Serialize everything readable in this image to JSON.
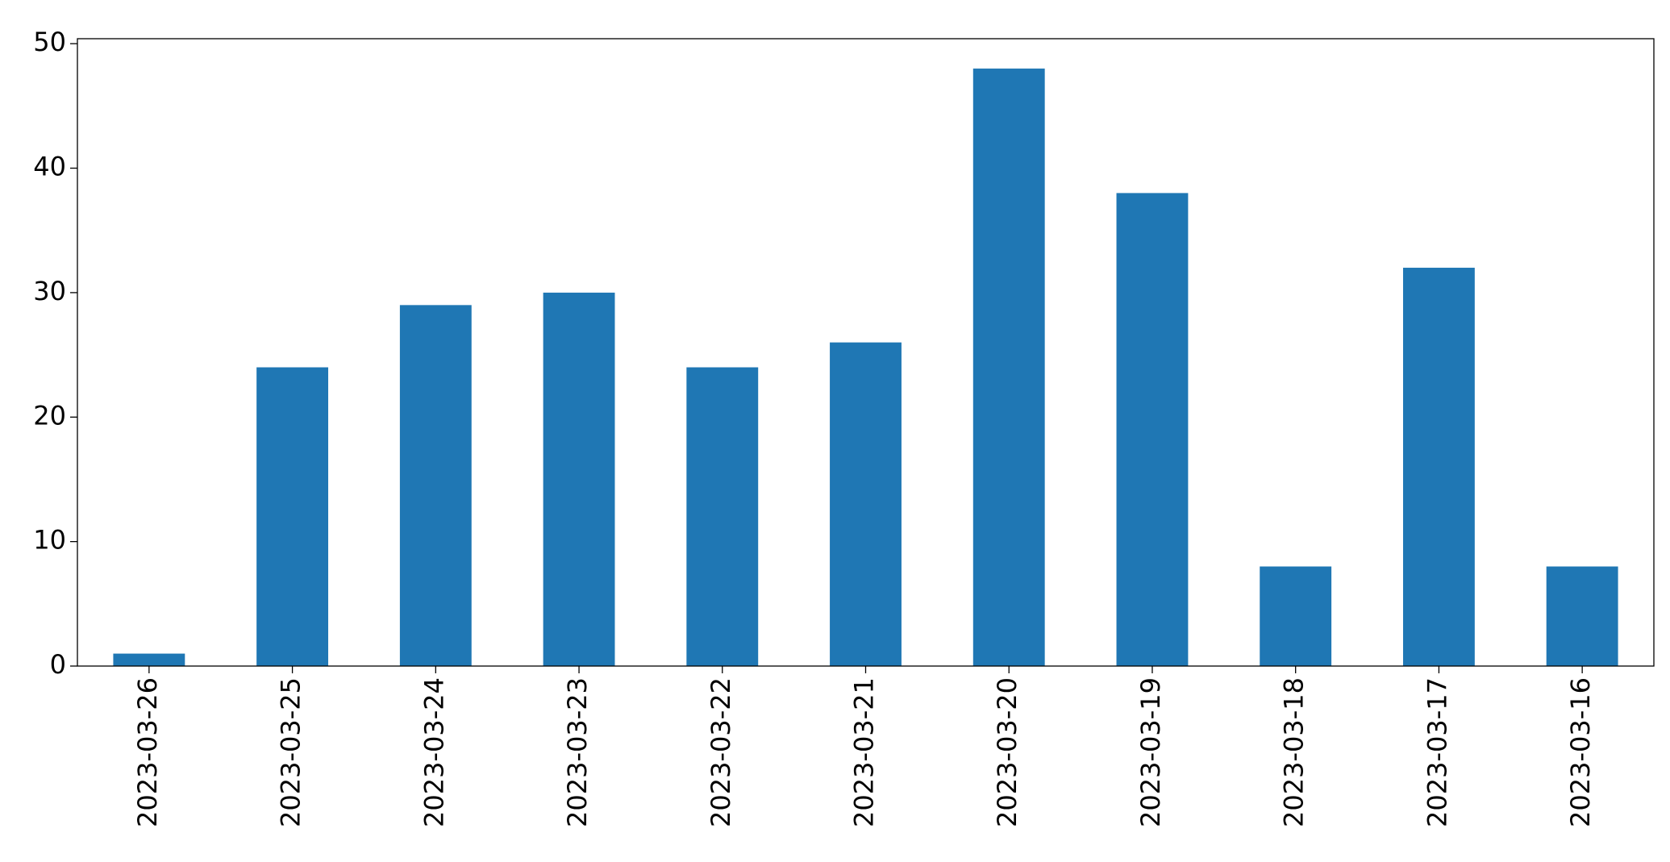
{
  "chart_data": {
    "type": "bar",
    "categories": [
      "2023-03-26",
      "2023-03-25",
      "2023-03-24",
      "2023-03-23",
      "2023-03-22",
      "2023-03-21",
      "2023-03-20",
      "2023-03-19",
      "2023-03-18",
      "2023-03-17",
      "2023-03-16"
    ],
    "values": [
      1,
      24,
      29,
      30,
      24,
      26,
      48,
      38,
      8,
      32,
      8
    ],
    "color": "#1f77b4",
    "ylim": [
      0,
      50.4
    ],
    "yticks": [
      0,
      10,
      20,
      30,
      40,
      50
    ],
    "grid": false
  }
}
